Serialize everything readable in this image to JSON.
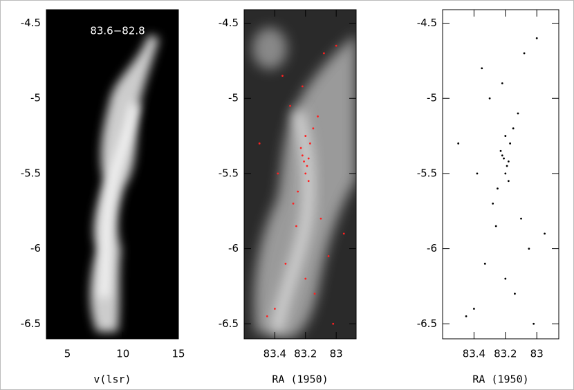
{
  "chart_data": [
    {
      "type": "image",
      "annotation": "83.6−82.8",
      "xlabel": "v(lsr)",
      "xlim": [
        3.1,
        15
      ],
      "xticks": [
        5,
        10,
        15
      ],
      "ylim": [
        -6.6,
        -4.41
      ],
      "yticks": [
        -4.5,
        -5,
        -5.5,
        -6,
        -6.5
      ]
    },
    {
      "type": "scatter",
      "xlabel": "RA (1950)",
      "color": "#ff2020",
      "xlim": [
        83.6,
        82.87
      ],
      "xticks": [
        83.4,
        83.2,
        83
      ],
      "ylim": [
        -6.6,
        -4.41
      ],
      "yticks": [
        -4.5,
        -5,
        -5.5,
        -6,
        -6.5
      ],
      "x": [
        83.21,
        83.19,
        83.22,
        83.18,
        83.2,
        83.23,
        83.17,
        83.25,
        83.15,
        83.3,
        83.1,
        83.35,
        83.05,
        83.4,
        83.0,
        83.2,
        83.28,
        83.12,
        83.45,
        82.95,
        83.22,
        83.18,
        83.5,
        83.33,
        83.08,
        83.2,
        83.26,
        83.14,
        83.38,
        83.02
      ],
      "y": [
        -5.42,
        -5.45,
        -5.38,
        -5.4,
        -5.5,
        -5.33,
        -5.3,
        -5.62,
        -5.2,
        -5.05,
        -5.8,
        -4.85,
        -6.05,
        -6.4,
        -4.65,
        -6.2,
        -5.7,
        -5.12,
        -6.45,
        -5.9,
        -4.92,
        -5.55,
        -5.3,
        -6.1,
        -4.7,
        -5.25,
        -5.85,
        -6.3,
        -5.5,
        -6.5
      ]
    },
    {
      "type": "scatter",
      "xlabel": "RA (1950)",
      "color": "#000000",
      "xlim": [
        83.6,
        82.86
      ],
      "xticks": [
        83.4,
        83.2,
        83
      ],
      "ylim": [
        -6.6,
        -4.41
      ],
      "yticks": [
        -4.5,
        -5,
        -5.5,
        -6,
        -6.5
      ],
      "x": [
        83.21,
        83.19,
        83.22,
        83.18,
        83.2,
        83.23,
        83.17,
        83.25,
        83.15,
        83.3,
        83.1,
        83.35,
        83.05,
        83.4,
        83.0,
        83.2,
        83.28,
        83.12,
        83.45,
        82.95,
        83.22,
        83.18,
        83.5,
        83.33,
        83.08,
        83.2,
        83.26,
        83.14,
        83.38,
        83.02
      ],
      "y": [
        -5.4,
        -5.45,
        -5.38,
        -5.42,
        -5.5,
        -5.35,
        -5.3,
        -5.6,
        -5.2,
        -5.0,
        -5.8,
        -4.8,
        -6.0,
        -6.4,
        -4.6,
        -6.2,
        -5.7,
        -5.1,
        -6.45,
        -5.9,
        -4.9,
        -5.55,
        -5.3,
        -6.1,
        -4.7,
        -5.25,
        -5.85,
        -6.3,
        -5.5,
        -6.5
      ]
    }
  ]
}
